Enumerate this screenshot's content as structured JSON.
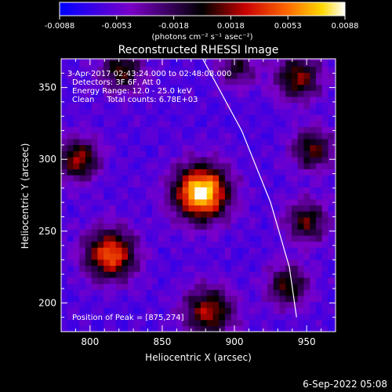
{
  "colorbar": {
    "ticks": [
      "-0.0088",
      "-0.0053",
      "-0.0018",
      "0.0018",
      "0.0053",
      "0.0088"
    ],
    "unit": "(photons cm⁻² s⁻¹ asec⁻²)",
    "min": -0.0088,
    "max": 0.0088
  },
  "image": {
    "title": "Reconstructed RHESSI Image",
    "time_range": "3-Apr-2017 02:43:24.000 to 02:48:08.000",
    "detectors": "Detectors: 3F 6F, Att 0",
    "energy_range": "Energy Range: 12.0 - 25.0 keV",
    "clean_info": "Clean     Total counts: 6.78E+03",
    "peak_text": "Position of Peak = [875,274]",
    "footer_date": "6-Sep-2022 05:08"
  },
  "chart_data": {
    "type": "heatmap",
    "title": "Reconstructed RHESSI Image",
    "xlabel": "Heliocentric X (arcsec)",
    "ylabel": "Heliocentric Y (arcsec)",
    "xlim": [
      780,
      970
    ],
    "ylim": [
      180,
      370
    ],
    "xticks": [
      800,
      850,
      900,
      950
    ],
    "yticks": [
      200,
      250,
      300,
      350
    ],
    "xtick_labels": [
      "800",
      "850",
      "900",
      "950"
    ],
    "ytick_labels": [
      "200",
      "250",
      "300",
      "350"
    ],
    "peak": {
      "x": 875,
      "y": 274
    },
    "colormap": [
      "#0000ff",
      "#7a00c8",
      "#000000",
      "#c80000",
      "#ff6a00",
      "#ffd800",
      "#ffffff"
    ],
    "sources": [
      {
        "x": 875,
        "y": 275,
        "amp": 1.0,
        "sigma": 13
      },
      {
        "x": 812,
        "y": 232,
        "amp": 0.72,
        "sigma": 12
      },
      {
        "x": 790,
        "y": 298,
        "amp": 0.55,
        "sigma": 10
      },
      {
        "x": 820,
        "y": 360,
        "amp": 0.45,
        "sigma": 10
      },
      {
        "x": 880,
        "y": 192,
        "amp": 0.55,
        "sigma": 12
      },
      {
        "x": 942,
        "y": 355,
        "amp": 0.5,
        "sigma": 11
      },
      {
        "x": 952,
        "y": 305,
        "amp": 0.45,
        "sigma": 10
      },
      {
        "x": 948,
        "y": 255,
        "amp": 0.45,
        "sigma": 10
      },
      {
        "x": 935,
        "y": 210,
        "amp": 0.45,
        "sigma": 10
      },
      {
        "x": 900,
        "y": 362,
        "amp": 0.35,
        "sigma": 9
      }
    ],
    "limb_curve": [
      {
        "x": 878,
        "y": 370
      },
      {
        "x": 905,
        "y": 320
      },
      {
        "x": 925,
        "y": 270
      },
      {
        "x": 938,
        "y": 225
      },
      {
        "x": 943,
        "y": 190
      }
    ]
  }
}
